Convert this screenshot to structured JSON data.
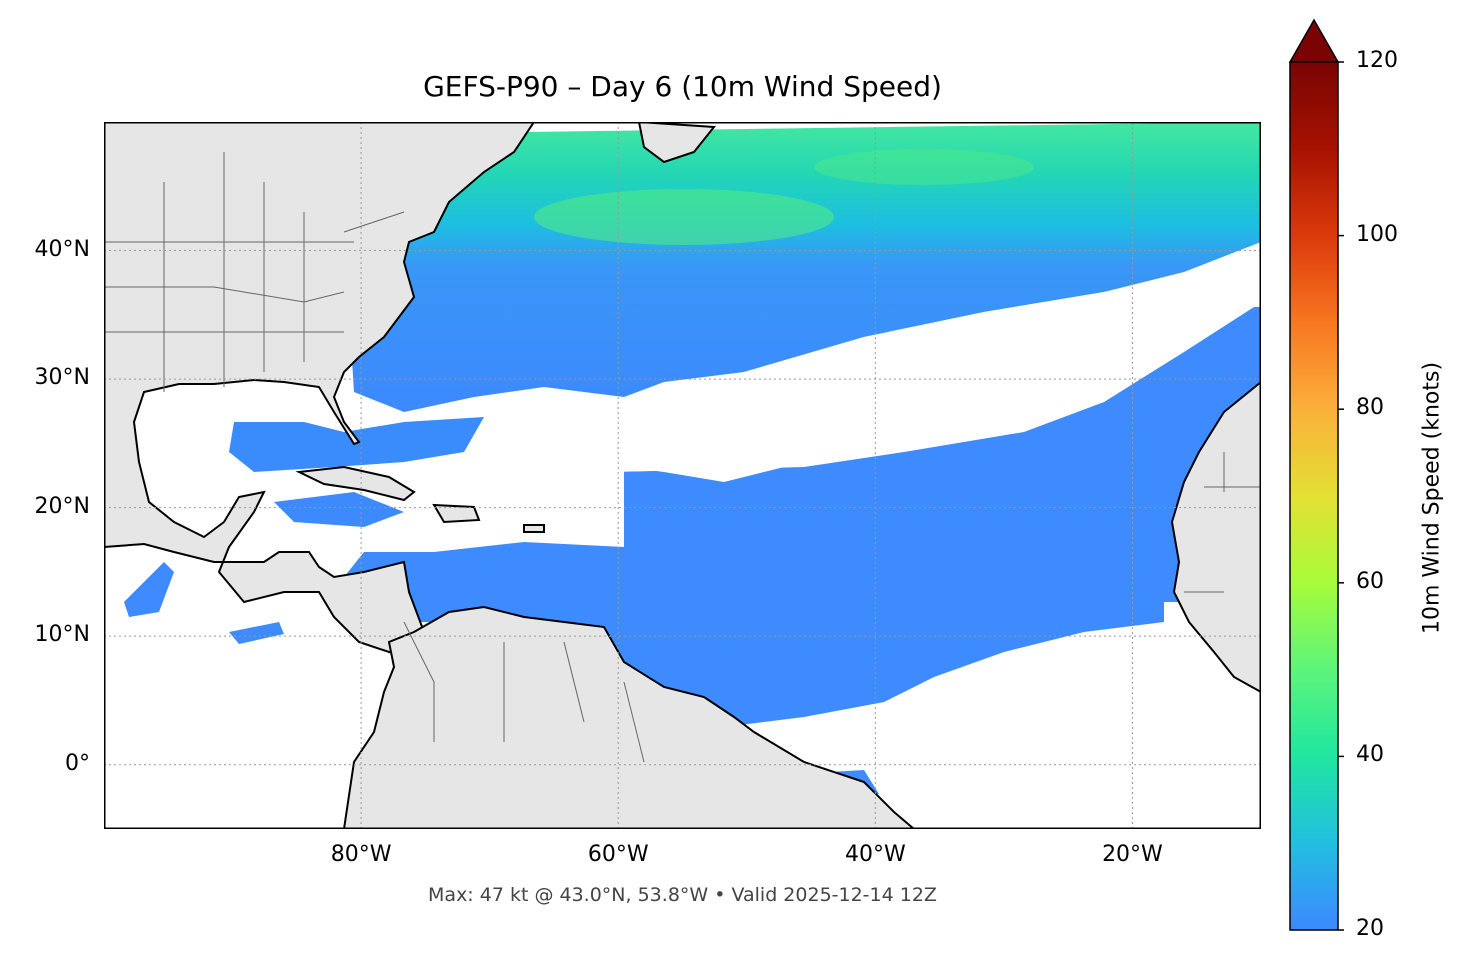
{
  "title": "GEFS-P90 – Day 6 (10m Wind Speed)",
  "footer": "Max: 47 kt @ 43.0°N, 53.8°W • Valid 2025-12-14 12Z",
  "map": {
    "lon_range": [
      -100,
      -10
    ],
    "lat_range": [
      -5,
      50
    ],
    "lat_ticks": [
      {
        "value": 40,
        "label": "40°N"
      },
      {
        "value": 30,
        "label": "30°N"
      },
      {
        "value": 20,
        "label": "20°N"
      },
      {
        "value": 10,
        "label": "10°N"
      },
      {
        "value": 0,
        "label": "0°"
      }
    ],
    "lon_ticks": [
      {
        "value": -80,
        "label": "80°W"
      },
      {
        "value": -60,
        "label": "60°W"
      },
      {
        "value": -40,
        "label": "40°W"
      },
      {
        "value": -20,
        "label": "20°W"
      }
    ],
    "gridlines": true,
    "land_color": "#e6e6e6",
    "coast_color": "#000000",
    "border_color": "#666666"
  },
  "colorbar": {
    "label": "10m Wind Speed (knots)",
    "range": [
      20,
      120
    ],
    "extend": "max",
    "ticks": [
      {
        "value": 120,
        "label": "120"
      },
      {
        "value": 100,
        "label": "100"
      },
      {
        "value": 80,
        "label": "80"
      },
      {
        "value": 60,
        "label": "60"
      },
      {
        "value": 40,
        "label": "40"
      },
      {
        "value": 20,
        "label": "20"
      }
    ],
    "colors": [
      "#3c89ff",
      "#22bfe0",
      "#1fe6a0",
      "#5df57a",
      "#a7fb3a",
      "#e4e033",
      "#fbb03b",
      "#f87620",
      "#db3a0b",
      "#a61202",
      "#7a0403"
    ]
  },
  "max_point": {
    "lat": 43.0,
    "lon": -53.8,
    "value_kt": 47
  }
}
